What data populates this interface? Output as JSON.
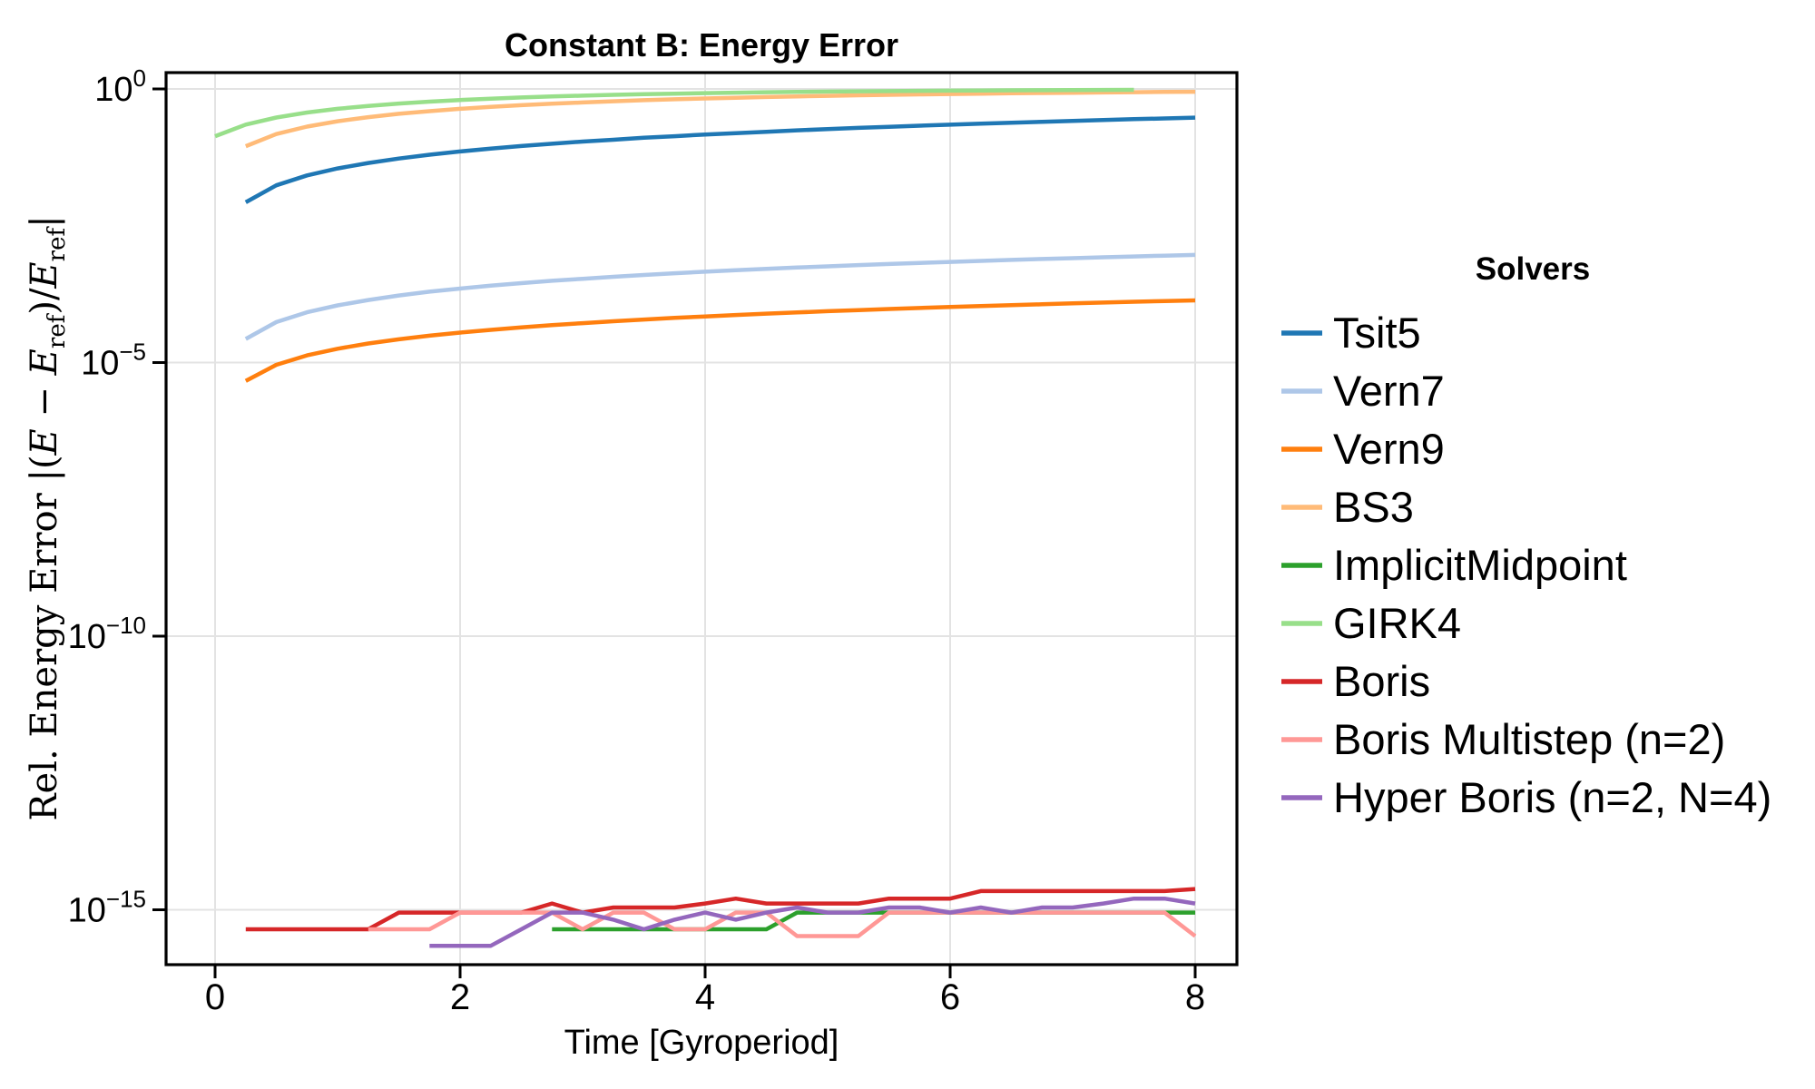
{
  "title": "Constant B: Energy Error",
  "axes": {
    "xlabel": "Time [Gyroperiod]",
    "x_ticks": [
      0,
      2,
      4,
      6,
      8
    ],
    "x_range": [
      -0.4,
      8.34
    ],
    "y_scale": "log10",
    "y_ticks": [
      {
        "exp": 0,
        "label": "0"
      },
      {
        "exp": -5,
        "label": "−5"
      },
      {
        "exp": -10,
        "label": "−10"
      },
      {
        "exp": -15,
        "label": "−15"
      }
    ],
    "y_range_exponents": [
      0.3,
      -16.0
    ],
    "grid": true,
    "ylabel_tokens": [
      {
        "t": "Rel. Energy Error |(",
        "style": "roman"
      },
      {
        "t": "E",
        "style": "italic"
      },
      {
        "t": " − ",
        "style": "roman"
      },
      {
        "t": "E",
        "style": "italic"
      },
      {
        "t": "ref",
        "style": "sub"
      },
      {
        "t": ")/",
        "style": "roman"
      },
      {
        "t": "E",
        "style": "italic"
      },
      {
        "t": "ref",
        "style": "sub"
      },
      {
        "t": "|",
        "style": "roman"
      }
    ]
  },
  "legend": {
    "title": "Solvers",
    "position": "right-outside"
  },
  "style": {
    "background": "#ffffff",
    "grid_color": "#e3e3e3",
    "spine_color": "#000000",
    "line_width": 4.5
  },
  "chart_data": {
    "type": "line",
    "title": "Constant B: Energy Error",
    "xlabel": "Time [Gyroperiod]",
    "ylabel": "Rel. Energy Error |(E − E_ref)/E_ref|",
    "x_range": [
      -0.4,
      8.34
    ],
    "y_scale": "log10",
    "y_tick_values": [
      1,
      1e-05,
      1e-10,
      1e-15
    ],
    "legend_position": "right",
    "grid": true,
    "series": [
      {
        "name": "Tsit5",
        "color": "#1f77b4",
        "t": [
          0.25,
          0.5,
          0.75,
          1,
          1.25,
          1.5,
          1.75,
          2,
          2.25,
          2.5,
          2.75,
          3,
          3.25,
          3.5,
          3.75,
          4,
          4.25,
          4.5,
          4.75,
          5,
          5.25,
          5.5,
          5.75,
          6,
          6.25,
          6.5,
          6.75,
          7,
          7.25,
          7.5,
          7.75,
          8
        ],
        "v": [
          0.0085,
          0.0173,
          0.0263,
          0.0353,
          0.0444,
          0.0535,
          0.0627,
          0.0719,
          0.0812,
          0.0905,
          0.0998,
          0.109,
          0.118,
          0.128,
          0.137,
          0.147,
          0.156,
          0.165,
          0.175,
          0.184,
          0.194,
          0.203,
          0.213,
          0.222,
          0.232,
          0.241,
          0.251,
          0.26,
          0.27,
          0.28,
          0.289,
          0.299
        ]
      },
      {
        "name": "Vern7",
        "color": "#aec7e8",
        "t": [
          0.25,
          0.5,
          0.75,
          1,
          1.25,
          1.5,
          1.75,
          2,
          2.25,
          2.5,
          2.75,
          3,
          3.25,
          3.5,
          3.75,
          4,
          4.25,
          4.5,
          4.75,
          5,
          5.25,
          5.5,
          5.75,
          6,
          6.25,
          6.5,
          6.75,
          7,
          7.25,
          7.5,
          7.75,
          8
        ],
        "v": [
          2.7e-05,
          5.5e-05,
          8.3e-05,
          0.000111,
          0.000139,
          0.000168,
          0.000197,
          0.000225,
          0.000254,
          0.000283,
          0.000312,
          0.00034,
          0.000369,
          0.000398,
          0.000428,
          0.000457,
          0.000486,
          0.000515,
          0.000544,
          0.000573,
          0.000603,
          0.000632,
          0.000661,
          0.000691,
          0.00072,
          0.00075,
          0.000779,
          0.000808,
          0.000838,
          0.000868,
          0.000897,
          0.000927
        ]
      },
      {
        "name": "Vern9",
        "color": "#ff7f0e",
        "t": [
          0.25,
          0.5,
          0.75,
          1,
          1.25,
          1.5,
          1.75,
          2,
          2.25,
          2.5,
          2.75,
          3,
          3.25,
          3.5,
          3.75,
          4,
          4.25,
          4.5,
          4.75,
          5,
          5.25,
          5.5,
          5.75,
          6,
          6.25,
          6.5,
          6.75,
          7,
          7.25,
          7.5,
          7.75,
          8
        ],
        "v": [
          4.6e-06,
          9.1e-06,
          1.35e-05,
          1.79e-05,
          2.23e-05,
          2.66e-05,
          3.1e-05,
          3.53e-05,
          3.96e-05,
          4.39e-05,
          4.82e-05,
          5.25e-05,
          5.68e-05,
          6.11e-05,
          6.54e-05,
          6.96e-05,
          7.39e-05,
          7.82e-05,
          8.24e-05,
          8.67e-05,
          9.09e-05,
          9.51e-05,
          9.94e-05,
          0.000104,
          0.000108,
          0.000112,
          0.000116,
          0.000121,
          0.000125,
          0.000129,
          0.000133,
          0.000137
        ]
      },
      {
        "name": "BS3",
        "color": "#ffbb78",
        "t": [
          0.25,
          0.5,
          0.75,
          1,
          1.25,
          1.5,
          1.75,
          2,
          2.25,
          2.5,
          2.75,
          3,
          3.25,
          3.5,
          3.75,
          4,
          4.25,
          4.5,
          4.75,
          5,
          5.25,
          5.5,
          5.75,
          6,
          6.25,
          6.5,
          6.75,
          7,
          7.25,
          7.5,
          7.75,
          8
        ],
        "v": [
          0.09,
          0.15,
          0.205,
          0.257,
          0.305,
          0.351,
          0.393,
          0.433,
          0.47,
          0.504,
          0.537,
          0.567,
          0.595,
          0.622,
          0.646,
          0.67,
          0.691,
          0.711,
          0.73,
          0.748,
          0.764,
          0.78,
          0.794,
          0.807,
          0.82,
          0.832,
          0.843,
          0.853,
          0.863,
          0.872,
          0.88,
          0.888
        ]
      },
      {
        "name": "ImplicitMidpoint",
        "color": "#2ca02c",
        "t": [
          2.75,
          3,
          3.25,
          3.5,
          3.75,
          4,
          4.25,
          4.5,
          4.75,
          5,
          5.25,
          5.5,
          5.75,
          6,
          6.25,
          6.5,
          6.75,
          7,
          7.25,
          7.5,
          7.75,
          8
        ],
        "v": [
          4.4e-16,
          4.4e-16,
          4.4e-16,
          4.4e-16,
          4.4e-16,
          4.4e-16,
          4.4e-16,
          4.4e-16,
          8.9e-16,
          8.9e-16,
          8.9e-16,
          8.9e-16,
          8.9e-16,
          8.9e-16,
          8.9e-16,
          8.9e-16,
          8.9e-16,
          8.9e-16,
          8.9e-16,
          8.9e-16,
          8.9e-16,
          8.9e-16
        ]
      },
      {
        "name": "GIRK4",
        "color": "#98df8a",
        "t": [
          0,
          0.25,
          0.5,
          0.75,
          1,
          1.25,
          1.5,
          1.75,
          2,
          2.25,
          2.5,
          2.75,
          3,
          3.25,
          3.5,
          3.75,
          4,
          4.25,
          4.5,
          4.75,
          5,
          5.25,
          5.5,
          5.75,
          6,
          6.25,
          6.5,
          6.75,
          7,
          7.25,
          7.5
        ],
        "v": [
          0.137,
          0.223,
          0.3,
          0.37,
          0.433,
          0.489,
          0.54,
          0.586,
          0.627,
          0.665,
          0.698,
          0.728,
          0.755,
          0.78,
          0.802,
          0.821,
          0.839,
          0.855,
          0.87,
          0.883,
          0.894,
          0.905,
          0.914,
          0.923,
          0.93,
          0.937,
          0.944,
          0.949,
          0.954,
          0.959,
          0.963
        ]
      },
      {
        "name": "Boris",
        "color": "#d62728",
        "t": [
          0.25,
          0.5,
          0.75,
          1,
          1.25,
          1.5,
          1.75,
          2,
          2.25,
          2.5,
          2.75,
          3,
          3.25,
          3.5,
          3.75,
          4,
          4.25,
          4.5,
          4.75,
          5,
          5.25,
          5.5,
          5.75,
          6,
          6.25,
          6.5,
          6.75,
          7,
          7.25,
          7.5,
          7.75,
          8
        ],
        "v": [
          4.4e-16,
          4.4e-16,
          4.4e-16,
          4.4e-16,
          4.4e-16,
          8.9e-16,
          8.9e-16,
          8.9e-16,
          8.9e-16,
          8.9e-16,
          1.3e-15,
          8.9e-16,
          1.1e-15,
          1.1e-15,
          1.1e-15,
          1.3e-15,
          1.6e-15,
          1.3e-15,
          1.3e-15,
          1.3e-15,
          1.3e-15,
          1.6e-15,
          1.6e-15,
          1.6e-15,
          2.2e-15,
          2.2e-15,
          2.2e-15,
          2.2e-15,
          2.2e-15,
          2.2e-15,
          2.2e-15,
          2.4e-15
        ]
      },
      {
        "name": "Boris Multistep (n=2)",
        "color": "#ff9896",
        "t": [
          1.25,
          1.5,
          1.75,
          2,
          2.25,
          2.5,
          2.75,
          3,
          3.25,
          3.5,
          3.75,
          4,
          4.25,
          4.5,
          4.75,
          5,
          5.25,
          5.5,
          5.75,
          6,
          6.25,
          6.5,
          6.75,
          7,
          7.25,
          7.5,
          7.75,
          8
        ],
        "v": [
          4.4e-16,
          4.4e-16,
          4.4e-16,
          8.9e-16,
          8.9e-16,
          8.9e-16,
          8.9e-16,
          4.4e-16,
          8.9e-16,
          8.9e-16,
          4.4e-16,
          4.4e-16,
          8.9e-16,
          8.9e-16,
          3.3e-16,
          3.3e-16,
          3.3e-16,
          8.9e-16,
          8.9e-16,
          8.9e-16,
          8.9e-16,
          8.9e-16,
          8.9e-16,
          8.9e-16,
          8.9e-16,
          8.9e-16,
          8.9e-16,
          3.3e-16
        ]
      },
      {
        "name": "Hyper Boris (n=2, N=4)",
        "color": "#9467bd",
        "t": [
          1.75,
          2,
          2.25,
          2.5,
          2.75,
          3,
          3.25,
          3.5,
          3.75,
          4,
          4.25,
          4.5,
          4.75,
          5,
          5.25,
          5.5,
          5.75,
          6,
          6.25,
          6.5,
          6.75,
          7,
          7.25,
          7.5,
          7.75,
          8
        ],
        "v": [
          2.2e-16,
          2.2e-16,
          2.2e-16,
          4.4e-16,
          8.9e-16,
          8.9e-16,
          6.6e-16,
          4.4e-16,
          6.6e-16,
          8.9e-16,
          6.6e-16,
          8.9e-16,
          1.1e-15,
          8.9e-16,
          8.9e-16,
          1.1e-15,
          1.1e-15,
          8.9e-16,
          1.1e-15,
          8.9e-16,
          1.1e-15,
          1.1e-15,
          1.3e-15,
          1.6e-15,
          1.6e-15,
          1.3e-15
        ]
      }
    ]
  }
}
